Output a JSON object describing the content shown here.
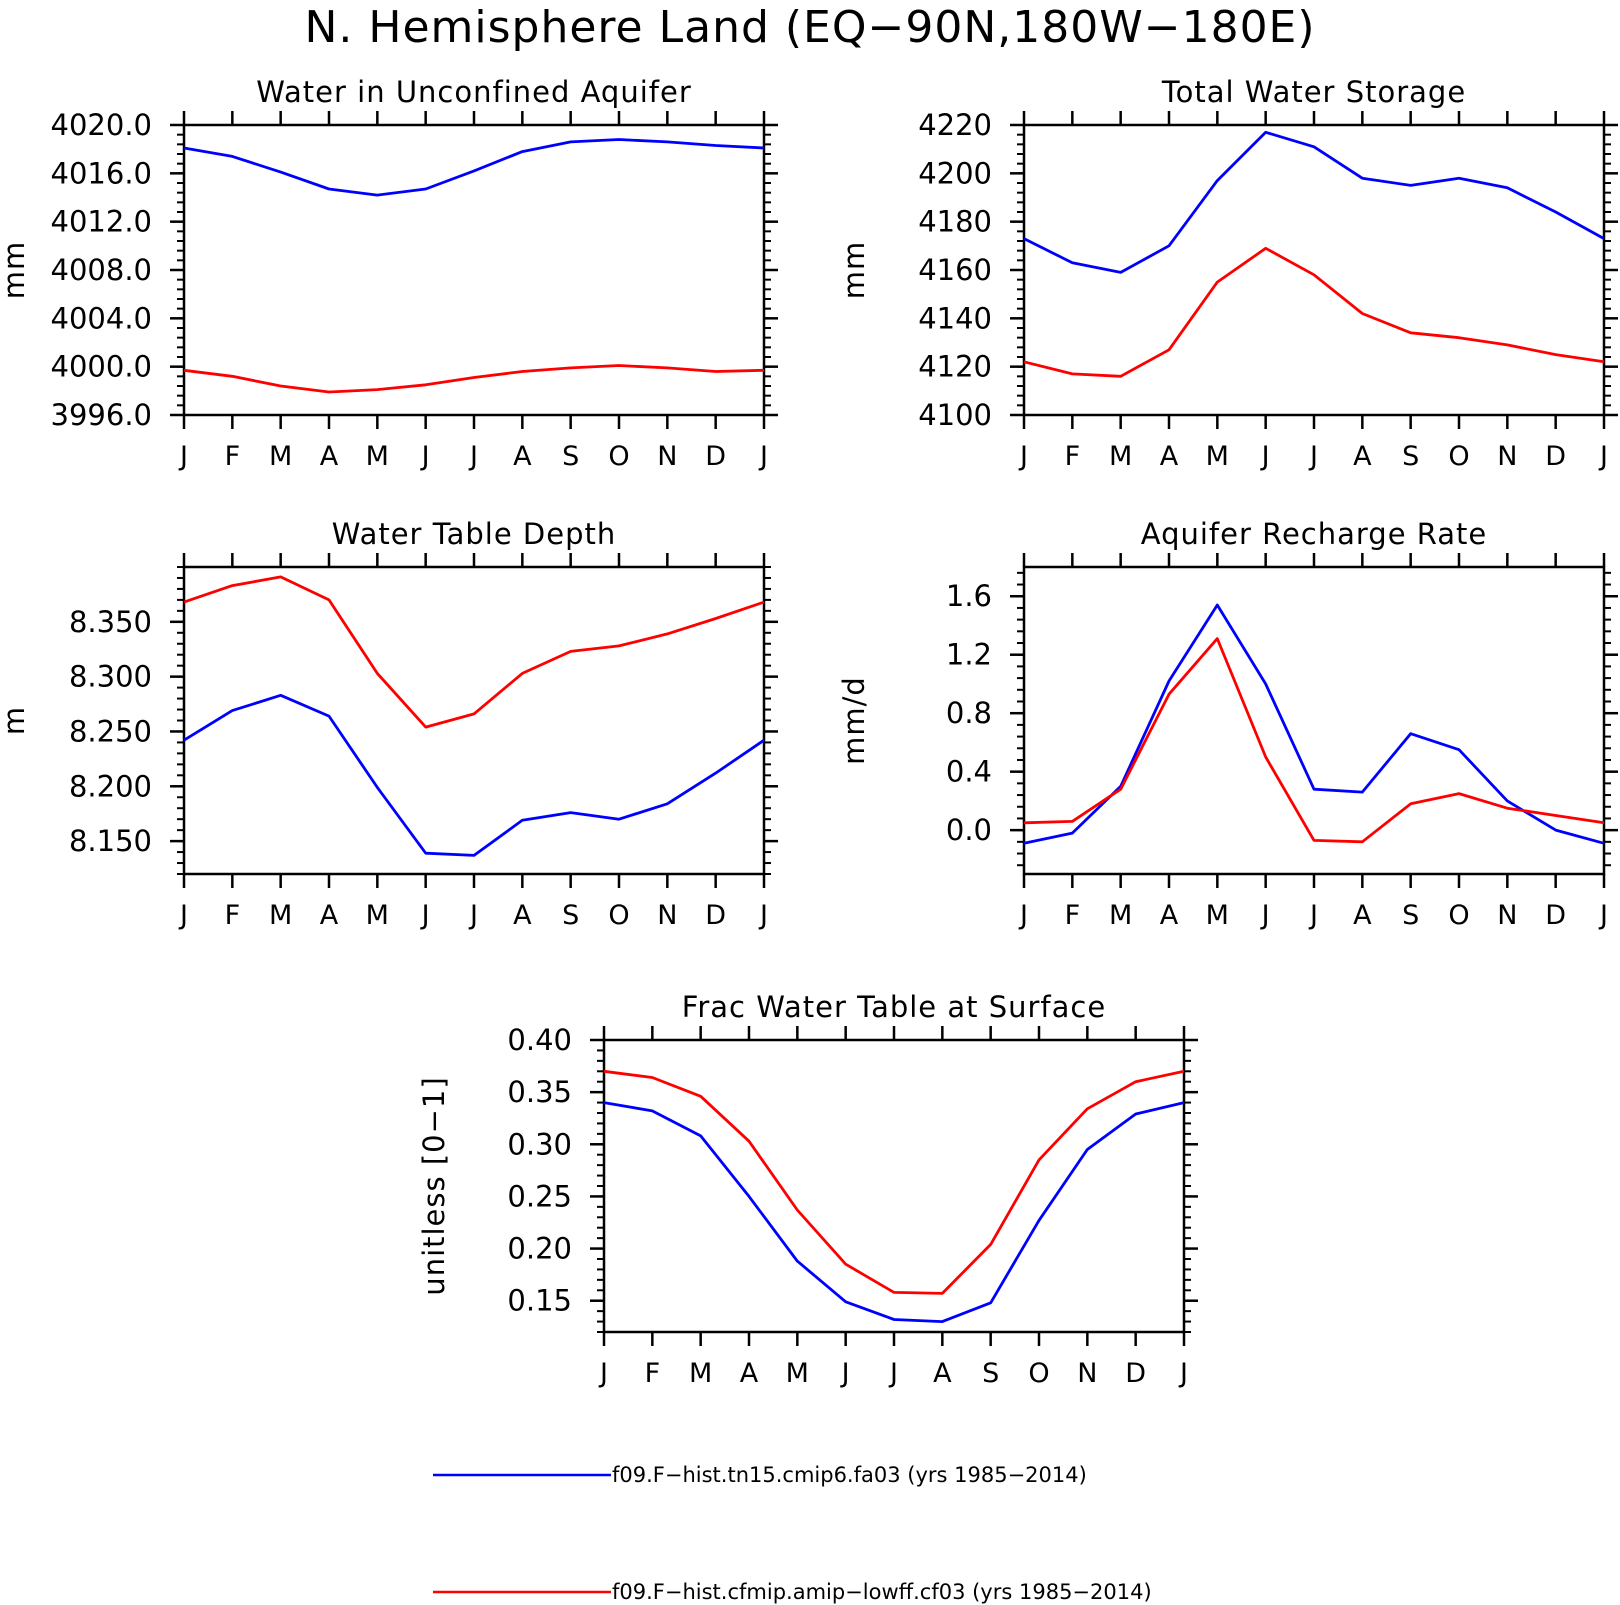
{
  "page_title": "N. Hemisphere Land (EQ−90N,180W−180E)",
  "legend": [
    {
      "label": "f09.F−hist.tn15.cmip6.fa03 (yrs 1985−2014)",
      "color": "#0000ff"
    },
    {
      "label": "f09.F−hist.cfmip.amip−lowff.cf03 (yrs 1985−2014)",
      "color": "#ff0000"
    }
  ],
  "chart_data": [
    {
      "type": "line",
      "title": "Water in Unconfined Aquifer",
      "ylabel": "mm",
      "xlabel": "",
      "categories": [
        "J",
        "F",
        "M",
        "A",
        "M",
        "J",
        "J",
        "A",
        "S",
        "O",
        "N",
        "D",
        "J"
      ],
      "ylim": [
        3996.0,
        4020.0
      ],
      "yticks": [
        "3996.0",
        "4000.0",
        "4004.0",
        "4008.0",
        "4012.0",
        "4016.0",
        "4020.0"
      ],
      "series": [
        {
          "color": "#0000ff",
          "values": [
            4018.1,
            4017.4,
            4016.1,
            4014.7,
            4014.2,
            4014.7,
            4016.2,
            4017.8,
            4018.6,
            4018.8,
            4018.6,
            4018.3,
            4018.1
          ]
        },
        {
          "color": "#ff0000",
          "values": [
            3999.7,
            3999.2,
            3998.4,
            3997.9,
            3998.1,
            3998.5,
            3999.1,
            3999.6,
            3999.9,
            4000.1,
            3999.9,
            3999.6,
            3999.7
          ]
        }
      ]
    },
    {
      "type": "line",
      "title": "Total Water Storage",
      "ylabel": "mm",
      "xlabel": "",
      "categories": [
        "J",
        "F",
        "M",
        "A",
        "M",
        "J",
        "J",
        "A",
        "S",
        "O",
        "N",
        "D",
        "J"
      ],
      "ylim": [
        4100,
        4220
      ],
      "yticks": [
        "4100",
        "4120",
        "4140",
        "4160",
        "4180",
        "4200",
        "4220"
      ],
      "series": [
        {
          "color": "#0000ff",
          "values": [
            4173,
            4163,
            4159,
            4170,
            4197,
            4217,
            4211,
            4198,
            4195,
            4198,
            4194,
            4184,
            4173
          ]
        },
        {
          "color": "#ff0000",
          "values": [
            4122,
            4117,
            4116,
            4127,
            4155,
            4169,
            4158,
            4142,
            4134,
            4132,
            4129,
            4125,
            4122
          ]
        }
      ]
    },
    {
      "type": "line",
      "title": "Water Table Depth",
      "ylabel": "m",
      "xlabel": "",
      "categories": [
        "J",
        "F",
        "M",
        "A",
        "M",
        "J",
        "J",
        "A",
        "S",
        "O",
        "N",
        "D",
        "J"
      ],
      "ylim": [
        8.12,
        8.4
      ],
      "yticks": [
        "8.150",
        "8.200",
        "8.250",
        "8.300",
        "8.350"
      ],
      "series": [
        {
          "color": "#0000ff",
          "values": [
            8.242,
            8.269,
            8.283,
            8.264,
            8.199,
            8.139,
            8.137,
            8.169,
            8.176,
            8.17,
            8.184,
            8.212,
            8.242
          ]
        },
        {
          "color": "#ff0000",
          "values": [
            8.368,
            8.383,
            8.391,
            8.37,
            8.303,
            8.254,
            8.266,
            8.303,
            8.323,
            8.328,
            8.339,
            8.353,
            8.368
          ]
        }
      ]
    },
    {
      "type": "line",
      "title": "Aquifer Recharge Rate",
      "ylabel": "mm/d",
      "xlabel": "",
      "categories": [
        "J",
        "F",
        "M",
        "A",
        "M",
        "J",
        "J",
        "A",
        "S",
        "O",
        "N",
        "D",
        "J"
      ],
      "ylim": [
        -0.3,
        1.8
      ],
      "yticks": [
        "0.0",
        "0.4",
        "0.8",
        "1.2",
        "1.6"
      ],
      "series": [
        {
          "color": "#0000ff",
          "values": [
            -0.09,
            -0.02,
            0.3,
            1.02,
            1.54,
            1.0,
            0.28,
            0.26,
            0.66,
            0.55,
            0.2,
            0.0,
            -0.09
          ]
        },
        {
          "color": "#ff0000",
          "values": [
            0.05,
            0.06,
            0.28,
            0.93,
            1.31,
            0.5,
            -0.07,
            -0.08,
            0.18,
            0.25,
            0.15,
            0.1,
            0.05
          ]
        }
      ]
    },
    {
      "type": "line",
      "title": "Frac Water Table at Surface",
      "ylabel": "unitless [0−1]",
      "xlabel": "",
      "categories": [
        "J",
        "F",
        "M",
        "A",
        "M",
        "J",
        "J",
        "A",
        "S",
        "O",
        "N",
        "D",
        "J"
      ],
      "ylim": [
        0.12,
        0.4
      ],
      "yticks": [
        "0.15",
        "0.20",
        "0.25",
        "0.30",
        "0.35",
        "0.40"
      ],
      "series": [
        {
          "color": "#0000ff",
          "values": [
            0.34,
            0.332,
            0.308,
            0.25,
            0.188,
            0.149,
            0.132,
            0.13,
            0.148,
            0.227,
            0.295,
            0.329,
            0.34
          ]
        },
        {
          "color": "#ff0000",
          "values": [
            0.37,
            0.364,
            0.346,
            0.303,
            0.237,
            0.185,
            0.158,
            0.157,
            0.204,
            0.285,
            0.334,
            0.36,
            0.37
          ]
        }
      ]
    }
  ]
}
